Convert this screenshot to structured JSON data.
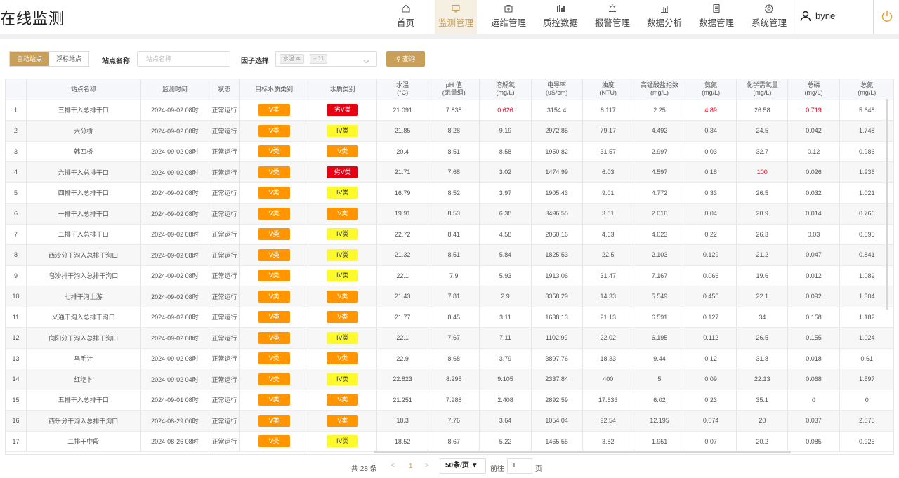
{
  "header": {
    "title": "在线监测",
    "nav": [
      {
        "label": "首页",
        "icon": "home-icon"
      },
      {
        "label": "监测管理",
        "icon": "monitor-icon",
        "active": true
      },
      {
        "label": "运维管理",
        "icon": "toolbox-icon"
      },
      {
        "label": "质控数据",
        "icon": "bar-chart-icon"
      },
      {
        "label": "报警管理",
        "icon": "alarm-icon"
      },
      {
        "label": "数据分析",
        "icon": "analysis-icon"
      },
      {
        "label": "数据管理",
        "icon": "document-icon"
      },
      {
        "label": "系统管理",
        "icon": "settings-icon"
      }
    ],
    "user": "byne"
  },
  "filters": {
    "tabs": [
      "自动站点",
      "浮标站点"
    ],
    "station_label": "站点名称",
    "station_placeholder": "站点名称",
    "factor_label": "因子选择",
    "factor_chip": "水温",
    "factor_more": "+ 11",
    "query_button": "查询"
  },
  "table": {
    "headers": [
      {
        "l1": "",
        "l2": ""
      },
      {
        "l1": "站点名称",
        "l2": ""
      },
      {
        "l1": "监测时间",
        "l2": ""
      },
      {
        "l1": "状态",
        "l2": ""
      },
      {
        "l1": "目标水质类别",
        "l2": ""
      },
      {
        "l1": "水质类别",
        "l2": ""
      },
      {
        "l1": "水温",
        "l2": "(°C)"
      },
      {
        "l1": "pH 值",
        "l2": "(无量纲)"
      },
      {
        "l1": "溶解氧",
        "l2": "(mg/L)"
      },
      {
        "l1": "电导率",
        "l2": "(uS/cm)"
      },
      {
        "l1": "浊度",
        "l2": "(NTU)"
      },
      {
        "l1": "高锰酸盐指数",
        "l2": "(mg/L)"
      },
      {
        "l1": "氨氮",
        "l2": "(mg/L)"
      },
      {
        "l1": "化学需氧量",
        "l2": "(mg/L)"
      },
      {
        "l1": "总磷",
        "l2": "(mg/L)"
      },
      {
        "l1": "总氮",
        "l2": "(mg/L)"
      }
    ],
    "rows": [
      {
        "idx": "1",
        "name": "三排干入总排干口",
        "time": "2024-09-02 08时",
        "status": "正常运行",
        "target": "V类",
        "target_cls": "v",
        "cat": "劣V类",
        "cat_cls": "worse",
        "temp": "21.091",
        "ph": "7.838",
        "do": "0.626",
        "cond": "3154.4",
        "turb": "8.117",
        "cod_mn": "2.25",
        "nh3": "4.89",
        "cod": "26.58",
        "tp": "0.719",
        "tn": "5.648",
        "red": [
          "do",
          "nh3",
          "tp"
        ]
      },
      {
        "idx": "2",
        "name": "六分桥",
        "time": "2024-09-02 08时",
        "status": "正常运行",
        "target": "V类",
        "target_cls": "v",
        "cat": "IV类",
        "cat_cls": "iv",
        "temp": "21.85",
        "ph": "8.28",
        "do": "9.19",
        "cond": "2972.85",
        "turb": "79.17",
        "cod_mn": "4.492",
        "nh3": "0.34",
        "cod": "24.5",
        "tp": "0.042",
        "tn": "1.748",
        "red": []
      },
      {
        "idx": "3",
        "name": "韩四桥",
        "time": "2024-09-02 08时",
        "status": "正常运行",
        "target": "V类",
        "target_cls": "v",
        "cat": "V类",
        "cat_cls": "v",
        "temp": "20.4",
        "ph": "8.51",
        "do": "8.58",
        "cond": "1950.82",
        "turb": "31.57",
        "cod_mn": "2.997",
        "nh3": "0.03",
        "cod": "32.7",
        "tp": "0.12",
        "tn": "0.986",
        "red": []
      },
      {
        "idx": "4",
        "name": "六排干入总排干口",
        "time": "2024-09-02 08时",
        "status": "正常运行",
        "target": "V类",
        "target_cls": "v",
        "cat": "劣V类",
        "cat_cls": "worse",
        "temp": "21.71",
        "ph": "7.68",
        "do": "3.02",
        "cond": "1474.99",
        "turb": "6.03",
        "cod_mn": "4.597",
        "nh3": "0.18",
        "cod": "100",
        "tp": "0.026",
        "tn": "1.936",
        "red": [
          "cod"
        ]
      },
      {
        "idx": "5",
        "name": "四排干入总排干口",
        "time": "2024-09-02 08时",
        "status": "正常运行",
        "target": "V类",
        "target_cls": "v",
        "cat": "IV类",
        "cat_cls": "iv",
        "temp": "16.79",
        "ph": "8.52",
        "do": "3.97",
        "cond": "1905.43",
        "turb": "9.01",
        "cod_mn": "4.772",
        "nh3": "0.33",
        "cod": "26.5",
        "tp": "0.032",
        "tn": "1.021",
        "red": []
      },
      {
        "idx": "6",
        "name": "一排干入总排干口",
        "time": "2024-09-02 08时",
        "status": "正常运行",
        "target": "V类",
        "target_cls": "v",
        "cat": "V类",
        "cat_cls": "v",
        "temp": "19.91",
        "ph": "8.53",
        "do": "6.38",
        "cond": "3496.55",
        "turb": "3.81",
        "cod_mn": "2.016",
        "nh3": "0.04",
        "cod": "20.9",
        "tp": "0.014",
        "tn": "0.766",
        "red": []
      },
      {
        "idx": "7",
        "name": "二排干入总排干口",
        "time": "2024-09-02 08时",
        "status": "正常运行",
        "target": "V类",
        "target_cls": "v",
        "cat": "IV类",
        "cat_cls": "iv",
        "temp": "22.72",
        "ph": "8.41",
        "do": "4.58",
        "cond": "2060.16",
        "turb": "4.63",
        "cod_mn": "4.023",
        "nh3": "0.22",
        "cod": "26.3",
        "tp": "0.03",
        "tn": "0.695",
        "red": []
      },
      {
        "idx": "8",
        "name": "西沙分干沟入总排干沟口",
        "time": "2024-09-02 08时",
        "status": "正常运行",
        "target": "V类",
        "target_cls": "v",
        "cat": "IV类",
        "cat_cls": "iv",
        "temp": "21.32",
        "ph": "8.51",
        "do": "5.84",
        "cond": "1825.53",
        "turb": "22.5",
        "cod_mn": "2.103",
        "nh3": "0.129",
        "cod": "21.2",
        "tp": "0.047",
        "tn": "0.841",
        "red": []
      },
      {
        "idx": "9",
        "name": "皂沙排干沟入总排干沟口",
        "time": "2024-09-02 08时",
        "status": "正常运行",
        "target": "V类",
        "target_cls": "v",
        "cat": "IV类",
        "cat_cls": "iv",
        "temp": "22.1",
        "ph": "7.9",
        "do": "5.93",
        "cond": "1913.06",
        "turb": "31.47",
        "cod_mn": "7.167",
        "nh3": "0.066",
        "cod": "19.6",
        "tp": "0.012",
        "tn": "1.089",
        "red": []
      },
      {
        "idx": "10",
        "name": "七排干沟上游",
        "time": "2024-09-02 08时",
        "status": "正常运行",
        "target": "V类",
        "target_cls": "v",
        "cat": "V类",
        "cat_cls": "v",
        "temp": "21.43",
        "ph": "7.81",
        "do": "2.9",
        "cond": "3358.29",
        "turb": "14.33",
        "cod_mn": "5.549",
        "nh3": "0.456",
        "cod": "22.1",
        "tp": "0.092",
        "tn": "1.304",
        "red": []
      },
      {
        "idx": "11",
        "name": "义通干沟入总排干沟口",
        "time": "2024-09-02 08时",
        "status": "正常运行",
        "target": "V类",
        "target_cls": "v",
        "cat": "V类",
        "cat_cls": "v",
        "temp": "21.77",
        "ph": "8.45",
        "do": "3.11",
        "cond": "1638.13",
        "turb": "21.13",
        "cod_mn": "6.591",
        "nh3": "0.127",
        "cod": "34",
        "tp": "0.158",
        "tn": "1.182",
        "red": []
      },
      {
        "idx": "12",
        "name": "向阳分干沟入总排干沟口",
        "time": "2024-09-02 08时",
        "status": "正常运行",
        "target": "V类",
        "target_cls": "v",
        "cat": "IV类",
        "cat_cls": "iv",
        "temp": "22.1",
        "ph": "7.67",
        "do": "7.11",
        "cond": "1102.99",
        "turb": "22.02",
        "cod_mn": "6.195",
        "nh3": "0.112",
        "cod": "26.5",
        "tp": "0.155",
        "tn": "1.024",
        "red": []
      },
      {
        "idx": "13",
        "name": "乌毛计",
        "time": "2024-09-02 08时",
        "status": "正常运行",
        "target": "V类",
        "target_cls": "v",
        "cat": "V类",
        "cat_cls": "v",
        "temp": "22.9",
        "ph": "8.68",
        "do": "3.79",
        "cond": "3897.76",
        "turb": "18.33",
        "cod_mn": "9.44",
        "nh3": "0.12",
        "cod": "31.8",
        "tp": "0.018",
        "tn": "0.61",
        "red": []
      },
      {
        "idx": "14",
        "name": "红圪卜",
        "time": "2024-09-02 04时",
        "status": "正常运行",
        "target": "V类",
        "target_cls": "v",
        "cat": "IV类",
        "cat_cls": "iv",
        "temp": "22.823",
        "ph": "8.295",
        "do": "9.105",
        "cond": "2337.84",
        "turb": "400",
        "cod_mn": "5",
        "nh3": "0.09",
        "cod": "22.13",
        "tp": "0.068",
        "tn": "1.597",
        "red": []
      },
      {
        "idx": "15",
        "name": "五排干入总排干口",
        "time": "2024-09-01 08时",
        "status": "正常运行",
        "target": "V类",
        "target_cls": "v",
        "cat": "V类",
        "cat_cls": "v",
        "temp": "21.251",
        "ph": "7.988",
        "do": "2.408",
        "cond": "2892.59",
        "turb": "17.633",
        "cod_mn": "6.02",
        "nh3": "0.23",
        "cod": "35.1",
        "tp": "0",
        "tn": "0",
        "red": []
      },
      {
        "idx": "16",
        "name": "西乐分干沟入总排干沟口",
        "time": "2024-08-29 00时",
        "status": "正常运行",
        "target": "V类",
        "target_cls": "v",
        "cat": "V类",
        "cat_cls": "v",
        "temp": "18.3",
        "ph": "7.76",
        "do": "3.64",
        "cond": "1054.04",
        "turb": "92.54",
        "cod_mn": "12.195",
        "nh3": "0.074",
        "cod": "20",
        "tp": "0.037",
        "tn": "2.075",
        "red": []
      },
      {
        "idx": "17",
        "name": "二排干中段",
        "time": "2024-08-26 08时",
        "status": "正常运行",
        "target": "V类",
        "target_cls": "v",
        "cat": "IV类",
        "cat_cls": "iv",
        "temp": "18.52",
        "ph": "8.67",
        "do": "5.22",
        "cond": "1465.55",
        "turb": "3.82",
        "cod_mn": "1.951",
        "nh3": "0.07",
        "cod": "20.2",
        "tp": "0.085",
        "tn": "0.925",
        "red": []
      }
    ]
  },
  "pager": {
    "total": "共 28 条",
    "prev": "<",
    "current": "1",
    "next": ">",
    "size": "50条/页",
    "goto": "前往",
    "goto_value": "1",
    "unit": "页"
  },
  "colors": {
    "accent": "#c9a05a",
    "v_class": "#ff9500",
    "iv_class": "#fdfa2c",
    "worse_class": "#e60012",
    "exceed_text": "#e8001c"
  }
}
